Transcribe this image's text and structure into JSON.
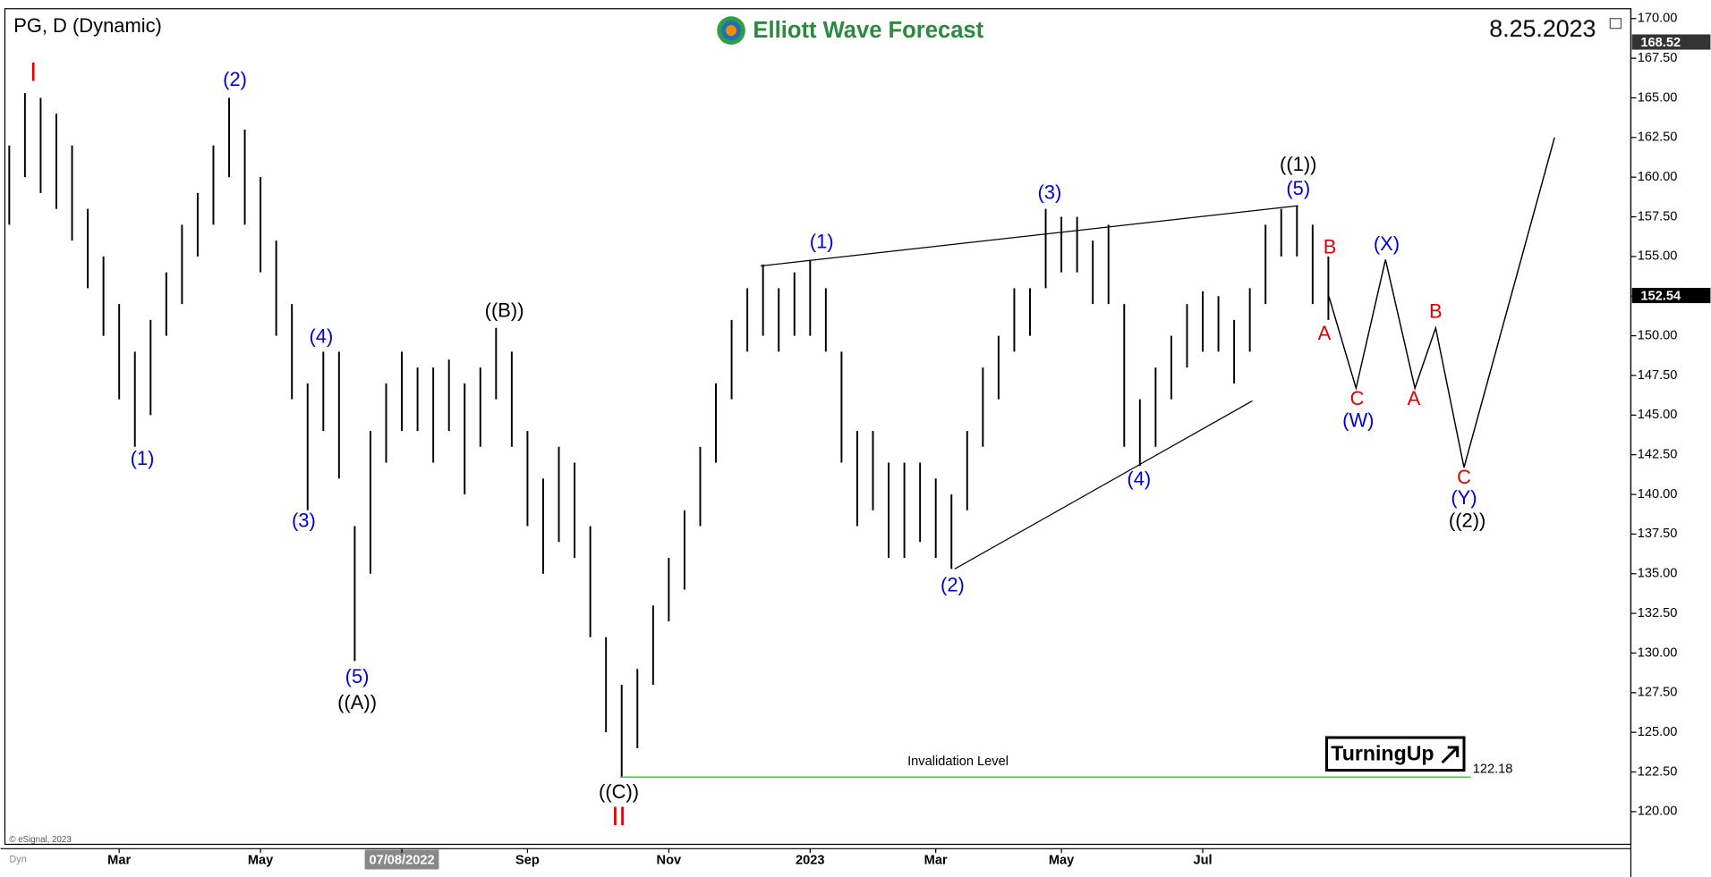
{
  "chart_data": {
    "type": "ohlc",
    "title": "PG, D (Dynamic)",
    "brand": "Elliott Wave Forecast",
    "date": "8.25.2023",
    "copyright": "© eSignal, 2023",
    "corner": "Dyn",
    "badge": "TurningUp",
    "color": "#000000",
    "categories": [
      null,
      null,
      null,
      null,
      null,
      null,
      null,
      "Mar",
      null,
      null,
      null,
      null,
      null,
      null,
      null,
      null,
      "May",
      null,
      null,
      null,
      null,
      null,
      null,
      null,
      null,
      "07/08/2022",
      null,
      null,
      null,
      null,
      null,
      null,
      null,
      "Sep",
      null,
      null,
      null,
      null,
      null,
      null,
      null,
      null,
      "Nov",
      null,
      null,
      null,
      null,
      null,
      null,
      null,
      null,
      "2023",
      null,
      null,
      null,
      null,
      null,
      null,
      null,
      "Mar",
      null,
      null,
      null,
      null,
      null,
      null,
      null,
      "May",
      null,
      null,
      null,
      null,
      null,
      null,
      null,
      null,
      "Jul",
      null,
      null,
      null,
      null,
      null,
      null,
      null,
      null
    ],
    "high": [
      162,
      165.3,
      165,
      164,
      162,
      158,
      155,
      152,
      149,
      151,
      154,
      157,
      159,
      162,
      165,
      163,
      160,
      156,
      152,
      147,
      149,
      149,
      138,
      144,
      147,
      149,
      148,
      148,
      148.5,
      147,
      148,
      150.5,
      149,
      144,
      141,
      143,
      142,
      138,
      131,
      128,
      129,
      133,
      136,
      139,
      143,
      147,
      151,
      153,
      154.5,
      153,
      154,
      154.8,
      153,
      149,
      144,
      144,
      142,
      142,
      142,
      141,
      140,
      144,
      148,
      150,
      153,
      153,
      158,
      157.5,
      157.5,
      156,
      157,
      152,
      146,
      148,
      150,
      152,
      152.8,
      152.5,
      151,
      153,
      157,
      158,
      158.2,
      157,
      155
    ],
    "low": [
      157,
      160,
      159,
      158,
      156,
      153,
      150,
      146,
      143,
      145,
      150,
      152,
      155,
      157,
      160,
      157,
      154,
      150,
      146,
      139,
      144,
      141,
      129.5,
      135,
      142,
      144,
      144,
      142,
      144,
      140,
      143,
      146,
      143,
      138,
      135,
      137,
      136,
      131,
      125,
      122.18,
      124,
      128,
      132,
      134,
      138,
      142,
      146,
      149,
      150,
      149,
      150,
      150,
      149,
      142,
      138,
      139,
      136,
      136,
      137,
      136,
      135.3,
      139,
      143,
      146,
      149,
      150,
      153,
      154,
      154,
      152,
      152,
      143,
      141.8,
      143,
      146,
      148,
      149,
      149,
      147,
      149,
      152,
      155,
      155,
      152,
      151
    ],
    "ylim": [
      117.94,
      170.62
    ],
    "yticks": [
      {
        "value": 120,
        "label": "120.00"
      },
      {
        "value": 122.5,
        "label": "122.50"
      },
      {
        "value": 125,
        "label": "125.00"
      },
      {
        "value": 127.5,
        "label": "127.50"
      },
      {
        "value": 130,
        "label": "130.00"
      },
      {
        "value": 132.5,
        "label": "132.50"
      },
      {
        "value": 135,
        "label": "135.00"
      },
      {
        "value": 137.5,
        "label": "137.50"
      },
      {
        "value": 140,
        "label": "140.00"
      },
      {
        "value": 142.5,
        "label": "142.50"
      },
      {
        "value": 145,
        "label": "145.00"
      },
      {
        "value": 147.5,
        "label": "147.50"
      },
      {
        "value": 150,
        "label": "150.00"
      },
      {
        "value": 152.5,
        "label": "152.50"
      },
      {
        "value": 155,
        "label": "155.00"
      },
      {
        "value": 157.5,
        "label": "157.50"
      },
      {
        "value": 160,
        "label": "160.00"
      },
      {
        "value": 162.5,
        "label": "162.50"
      },
      {
        "value": 165,
        "label": "165.00"
      },
      {
        "value": 167.5,
        "label": "167.50"
      },
      {
        "value": 170,
        "label": "170.00"
      }
    ],
    "price_tags": [
      168.52,
      152.54
    ],
    "invalidation": {
      "label": "Invalidation Level",
      "value": 122.18,
      "color": "#33cc33"
    },
    "trendlines": [
      [
        154.4,
        158.2
      ],
      [
        135.3,
        145.9
      ]
    ],
    "projection": [
      152.5,
      146.7,
      154.8,
      146.7,
      150.5,
      141.7,
      162.5
    ],
    "wave_labels": [
      {
        "text": "I",
        "color": "#e00000"
      },
      {
        "text": "(2)",
        "color": "#0000dd"
      },
      {
        "text": "(1)",
        "color": "#0000dd"
      },
      {
        "text": "(4)",
        "color": "#0000dd"
      },
      {
        "text": "(3)",
        "color": "#0000dd"
      },
      {
        "text": "(5)",
        "color": "#0000dd"
      },
      {
        "text": "((A))",
        "color": "#000000"
      },
      {
        "text": "((B))",
        "color": "#000000"
      },
      {
        "text": "((C))",
        "color": "#000000"
      },
      {
        "text": "II",
        "color": "#e00000"
      },
      {
        "text": "(1)",
        "color": "#0000dd"
      },
      {
        "text": "(2)",
        "color": "#0000dd"
      },
      {
        "text": "(3)",
        "color": "#0000dd"
      },
      {
        "text": "(4)",
        "color": "#0000dd"
      },
      {
        "text": "((1))",
        "color": "#000000"
      },
      {
        "text": "(5)",
        "color": "#0000dd"
      },
      {
        "text": "B",
        "color": "#e00000"
      },
      {
        "text": "A",
        "color": "#e00000"
      },
      {
        "text": "C",
        "color": "#e00000"
      },
      {
        "text": "(W)",
        "color": "#0000dd"
      },
      {
        "text": "(X)",
        "color": "#0000dd"
      },
      {
        "text": "B",
        "color": "#e00000"
      },
      {
        "text": "A",
        "color": "#e00000"
      },
      {
        "text": "C",
        "color": "#e00000"
      },
      {
        "text": "(Y)",
        "color": "#0000dd"
      },
      {
        "text": "((2))",
        "color": "#000000"
      }
    ]
  }
}
